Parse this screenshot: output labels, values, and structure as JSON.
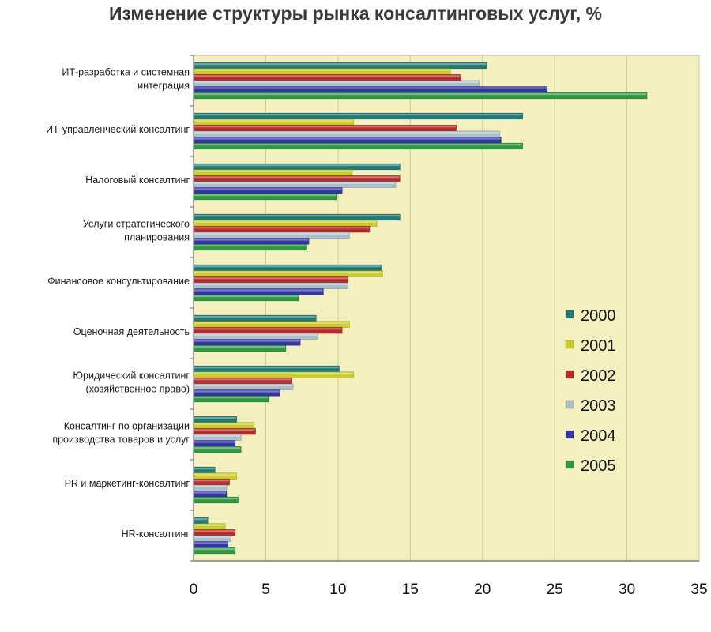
{
  "chart_data": {
    "type": "bar",
    "orientation": "horizontal",
    "title": "Изменение структуры рынка консалтинговых услуг, %",
    "xlabel": "",
    "ylabel": "",
    "xlim": [
      0,
      35
    ],
    "xticks": [
      "0",
      "5",
      "10",
      "15",
      "20",
      "25",
      "30",
      "35"
    ],
    "grid": true,
    "legend_position": "right",
    "categories": [
      [
        "ИТ-разработка и системная",
        "интеграция"
      ],
      [
        "ИТ-управленческий консалтинг"
      ],
      [
        "Налоговый консалтинг"
      ],
      [
        "Услуги стратегического",
        "планирования"
      ],
      [
        "Финансовое консультирование"
      ],
      [
        "Оценочная деятельность"
      ],
      [
        "Юридический консалтинг",
        "(хозяйственное право)"
      ],
      [
        "Консалтинг по организации",
        "производства товаров и услуг"
      ],
      [
        "PR и маркетинг-консалтинг"
      ],
      [
        "HR-консалтинг"
      ]
    ],
    "series": [
      {
        "name": "2000",
        "color": "#1f7a7a",
        "values": [
          20.3,
          22.8,
          14.3,
          14.3,
          13.0,
          8.5,
          10.1,
          3.0,
          1.5,
          1.0
        ]
      },
      {
        "name": "2001",
        "color": "#cccc2a",
        "values": [
          17.8,
          11.1,
          11.0,
          12.7,
          13.1,
          10.8,
          11.1,
          4.2,
          3.0,
          2.2
        ]
      },
      {
        "name": "2002",
        "color": "#b82a2a",
        "values": [
          18.5,
          18.2,
          14.3,
          12.2,
          10.7,
          10.3,
          6.8,
          4.3,
          2.5,
          2.9
        ]
      },
      {
        "name": "2003",
        "color": "#a9bfc9",
        "values": [
          19.8,
          21.2,
          14.0,
          10.8,
          10.7,
          8.6,
          6.9,
          3.3,
          2.3,
          2.6
        ]
      },
      {
        "name": "2004",
        "color": "#3535a8",
        "values": [
          24.5,
          21.3,
          10.3,
          8.0,
          9.0,
          7.4,
          6.0,
          2.9,
          2.3,
          2.4
        ]
      },
      {
        "name": "2005",
        "color": "#2a9a3a",
        "values": [
          31.4,
          22.8,
          9.9,
          7.8,
          7.3,
          6.4,
          5.2,
          3.3,
          3.1,
          2.9
        ]
      }
    ]
  }
}
